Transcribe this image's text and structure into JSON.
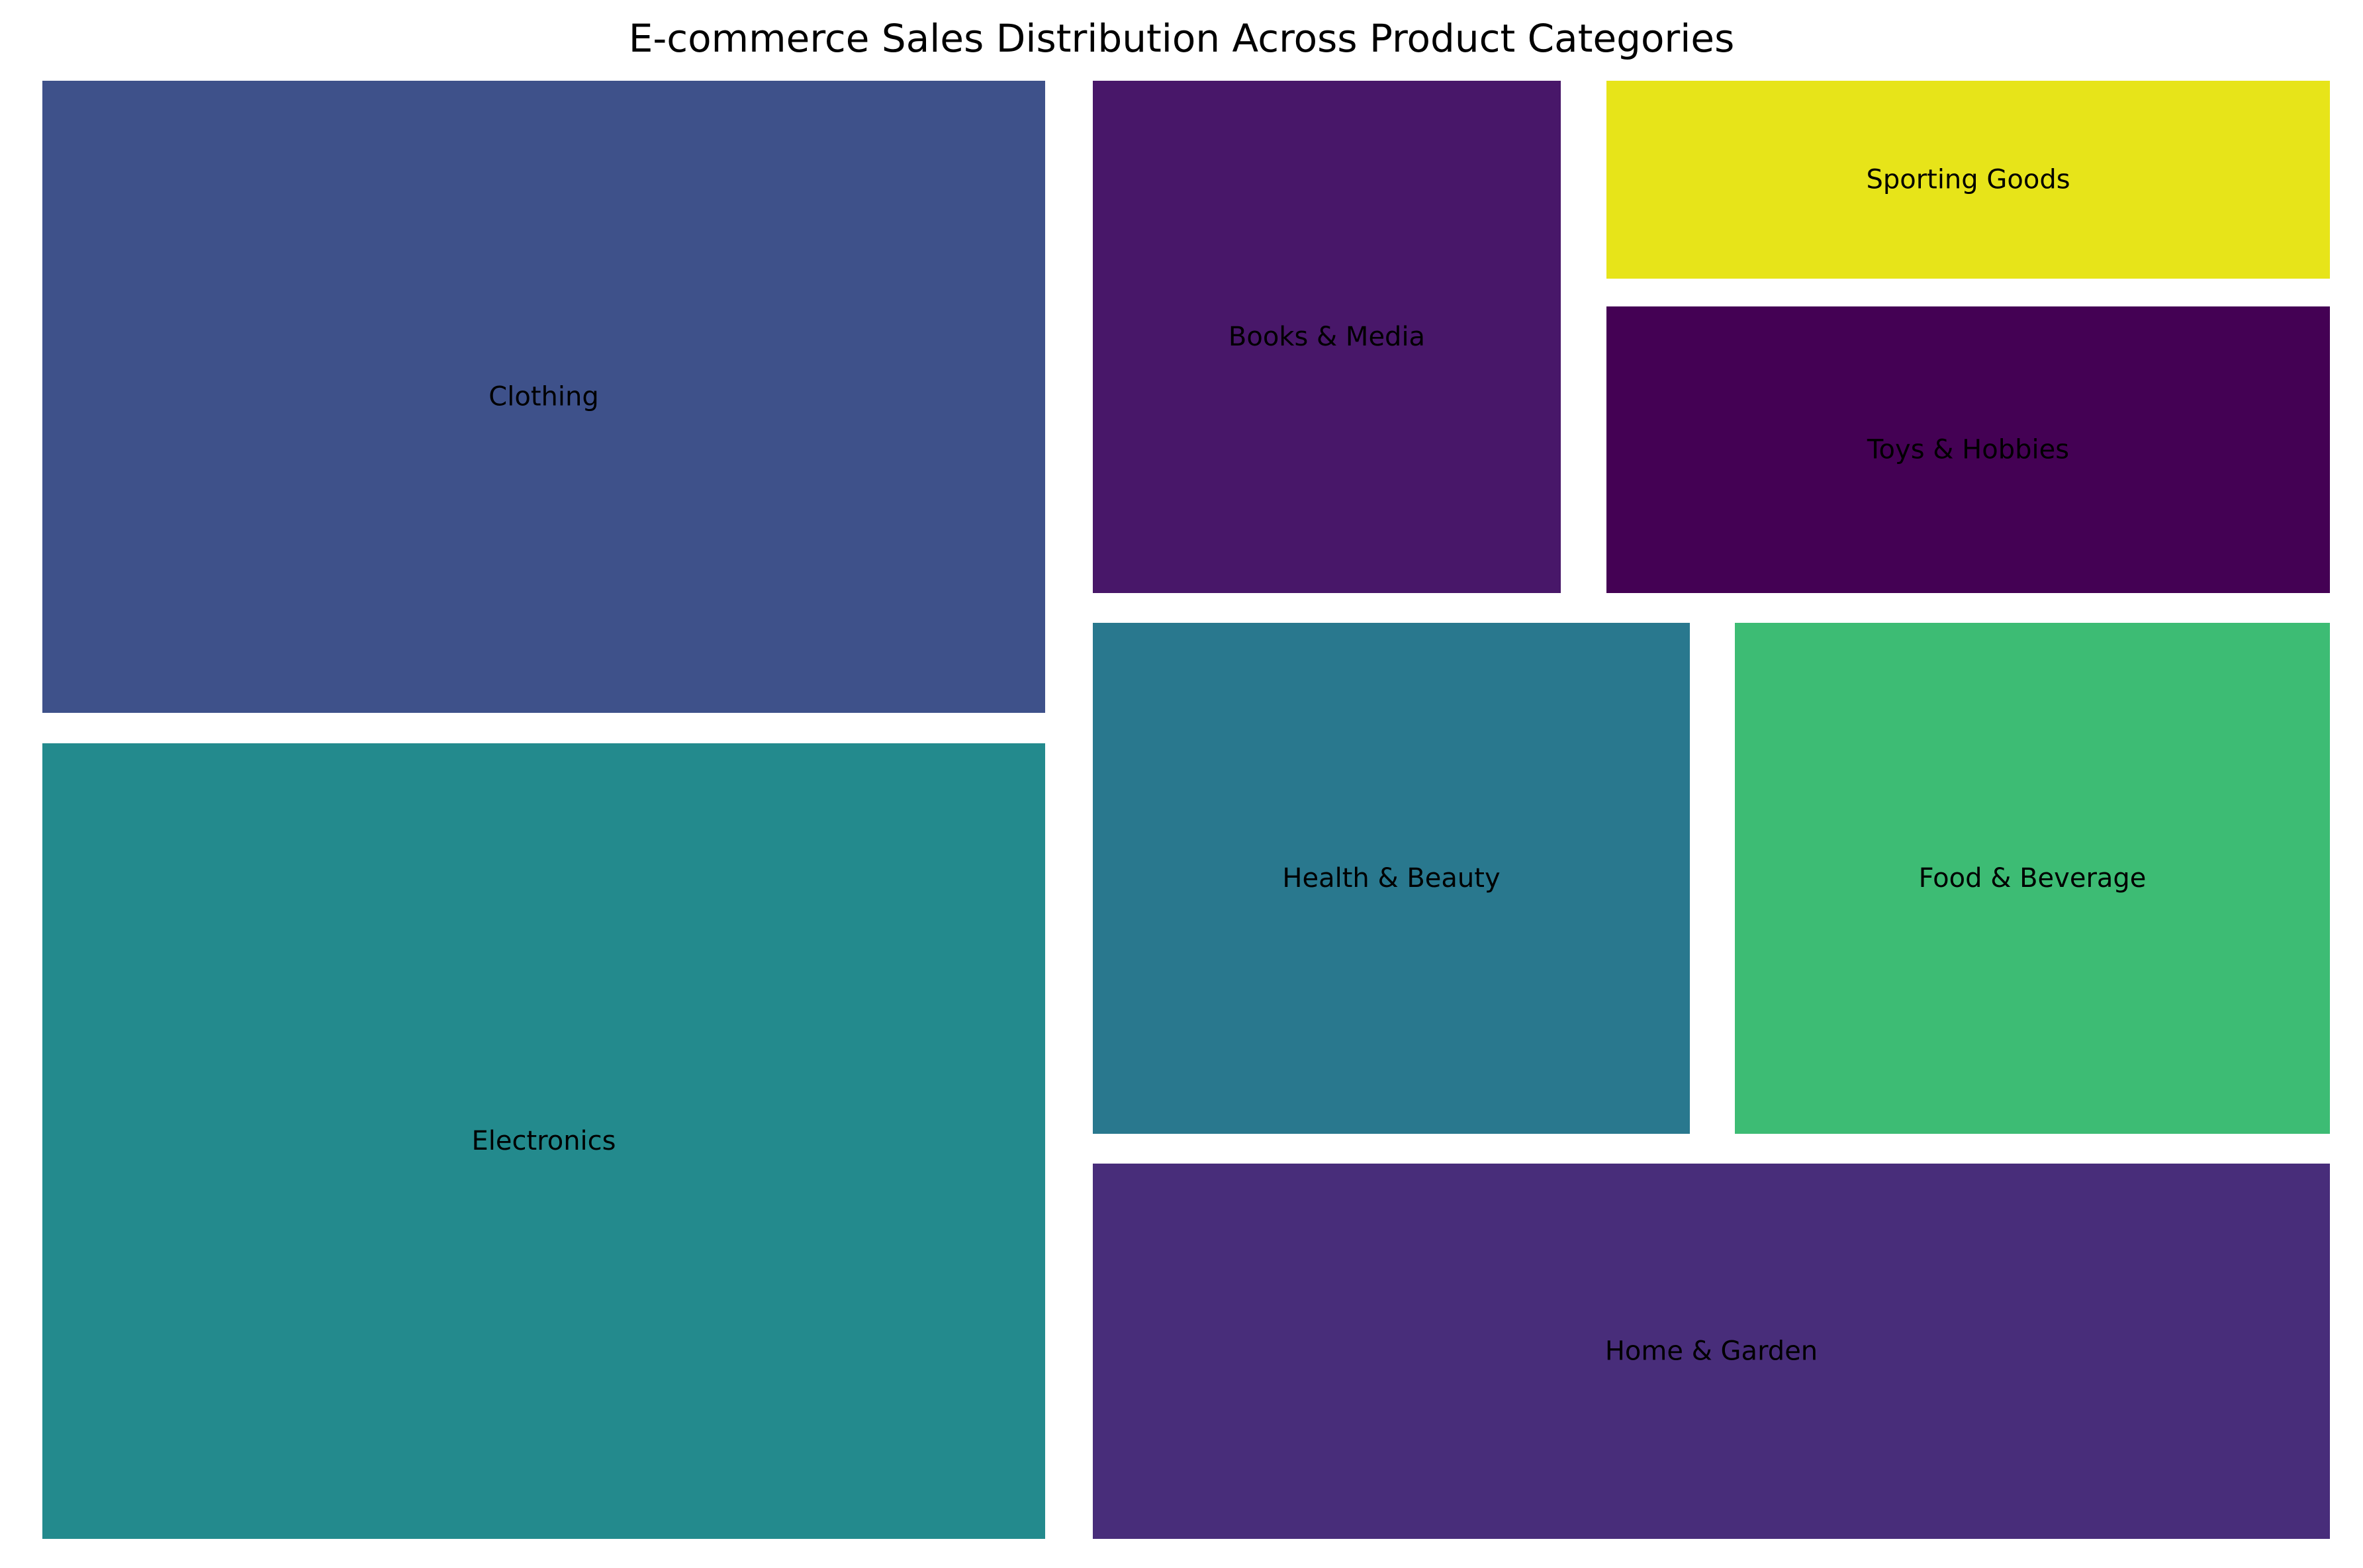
{
  "chart_data": {
    "type": "treemap",
    "title": "E-commerce Sales Distribution Across Product Categories",
    "colormap": "viridis",
    "cells": [
      {
        "label": "Electronics",
        "value": 28,
        "color": "#238a8d"
      },
      {
        "label": "Clothing",
        "value": 22,
        "color": "#3e518a"
      },
      {
        "label": "Home & Garden",
        "value": 16,
        "color": "#482d7a"
      },
      {
        "label": "Health & Beauty",
        "value": 10,
        "color": "#29788e"
      },
      {
        "label": "Food & Beverage",
        "value": 10,
        "color": "#3dbc74"
      },
      {
        "label": "Books & Media",
        "value": 8,
        "color": "#481769"
      },
      {
        "label": "Toys & Hobbies",
        "value": 6,
        "color": "#440154"
      },
      {
        "label": "Sporting Goods",
        "value": 4,
        "color": "#e7e419"
      }
    ]
  }
}
